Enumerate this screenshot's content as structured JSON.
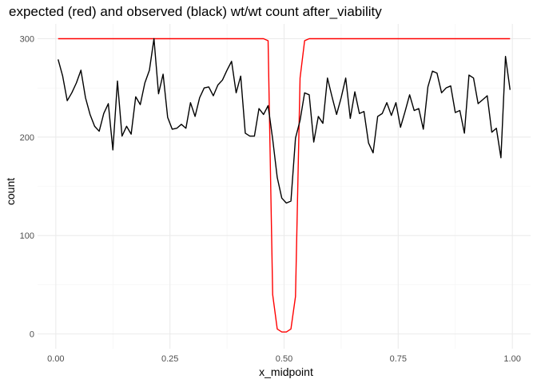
{
  "chart_data": {
    "type": "line",
    "title": "expected (red) and observed (black) wt/wt count after_viability",
    "xlabel": "x_midpoint",
    "ylabel": "count",
    "xlim": [
      -0.04,
      1.04
    ],
    "ylim": [
      -15,
      315
    ],
    "x_ticks": [
      0.0,
      0.25,
      0.5,
      0.75,
      1.0
    ],
    "x_tick_labels": [
      "0.00",
      "0.25",
      "0.50",
      "0.75",
      "1.00"
    ],
    "x_minor_ticks": [
      0.125,
      0.375,
      0.625,
      0.875
    ],
    "y_ticks": [
      0,
      100,
      200,
      300
    ],
    "y_tick_labels": [
      "0",
      "100",
      "200",
      "300"
    ],
    "y_minor_ticks": [
      50,
      150,
      250
    ],
    "grid": true,
    "legend": "none",
    "series": [
      {
        "color": "#ff0000",
        "x": [
          0.005,
          0.015,
          0.025,
          0.035,
          0.045,
          0.055,
          0.065,
          0.075,
          0.085,
          0.095,
          0.105,
          0.115,
          0.125,
          0.135,
          0.145,
          0.155,
          0.165,
          0.175,
          0.185,
          0.195,
          0.205,
          0.215,
          0.225,
          0.235,
          0.245,
          0.255,
          0.265,
          0.275,
          0.285,
          0.295,
          0.305,
          0.315,
          0.325,
          0.335,
          0.345,
          0.355,
          0.365,
          0.375,
          0.385,
          0.395,
          0.405,
          0.415,
          0.425,
          0.435,
          0.445,
          0.455,
          0.465,
          0.475,
          0.485,
          0.495,
          0.505,
          0.515,
          0.525,
          0.535,
          0.545,
          0.555,
          0.565,
          0.575,
          0.585,
          0.595,
          0.605,
          0.615,
          0.625,
          0.635,
          0.645,
          0.655,
          0.665,
          0.675,
          0.685,
          0.695,
          0.705,
          0.715,
          0.725,
          0.735,
          0.745,
          0.755,
          0.765,
          0.775,
          0.785,
          0.795,
          0.805,
          0.815,
          0.825,
          0.835,
          0.845,
          0.855,
          0.865,
          0.875,
          0.885,
          0.895,
          0.905,
          0.915,
          0.925,
          0.935,
          0.945,
          0.955,
          0.965,
          0.975,
          0.985,
          0.995
        ],
        "values": [
          300,
          300,
          300,
          300,
          300,
          300,
          300,
          300,
          300,
          300,
          300,
          300,
          300,
          300,
          300,
          300,
          300,
          300,
          300,
          300,
          300,
          300,
          300,
          300,
          300,
          300,
          300,
          300,
          300,
          300,
          300,
          300,
          300,
          300,
          300,
          300,
          300,
          300,
          300,
          300,
          300,
          300,
          300,
          300,
          300,
          300,
          298,
          40,
          5,
          2,
          2,
          5,
          38,
          260,
          298,
          300,
          300,
          300,
          300,
          300,
          300,
          300,
          300,
          300,
          300,
          300,
          300,
          300,
          300,
          300,
          300,
          300,
          300,
          300,
          300,
          300,
          300,
          300,
          300,
          300,
          300,
          300,
          300,
          300,
          300,
          300,
          300,
          300,
          300,
          300,
          300,
          300,
          300,
          300,
          300,
          300,
          300,
          300,
          300,
          300
        ]
      },
      {
        "color": "#000000",
        "x": [
          0.005,
          0.015,
          0.025,
          0.035,
          0.045,
          0.055,
          0.065,
          0.075,
          0.085,
          0.095,
          0.105,
          0.115,
          0.125,
          0.135,
          0.145,
          0.155,
          0.165,
          0.175,
          0.185,
          0.195,
          0.205,
          0.215,
          0.225,
          0.235,
          0.245,
          0.255,
          0.265,
          0.275,
          0.285,
          0.295,
          0.305,
          0.315,
          0.325,
          0.335,
          0.345,
          0.355,
          0.365,
          0.375,
          0.385,
          0.395,
          0.405,
          0.415,
          0.425,
          0.435,
          0.445,
          0.455,
          0.465,
          0.475,
          0.485,
          0.495,
          0.505,
          0.515,
          0.525,
          0.535,
          0.545,
          0.555,
          0.565,
          0.575,
          0.585,
          0.595,
          0.605,
          0.615,
          0.625,
          0.635,
          0.645,
          0.655,
          0.665,
          0.675,
          0.685,
          0.695,
          0.705,
          0.715,
          0.725,
          0.735,
          0.745,
          0.755,
          0.765,
          0.775,
          0.785,
          0.795,
          0.805,
          0.815,
          0.825,
          0.835,
          0.845,
          0.855,
          0.865,
          0.875,
          0.885,
          0.895,
          0.905,
          0.915,
          0.925,
          0.935,
          0.945,
          0.955,
          0.965,
          0.975,
          0.985,
          0.995
        ],
        "values": [
          279,
          262,
          237,
          245,
          255,
          268,
          240,
          223,
          211,
          206,
          224,
          234,
          187,
          257,
          201,
          211,
          203,
          241,
          233,
          255,
          268,
          300,
          244,
          264,
          220,
          208,
          209,
          213,
          209,
          235,
          221,
          240,
          250,
          251,
          242,
          253,
          258,
          268,
          277,
          245,
          262,
          204,
          201,
          201,
          229,
          223,
          232,
          198,
          159,
          138,
          133,
          135,
          199,
          217,
          245,
          243,
          195,
          221,
          214,
          260,
          241,
          223,
          240,
          260,
          219,
          246,
          224,
          226,
          194,
          184,
          221,
          224,
          235,
          222,
          235,
          210,
          226,
          243,
          227,
          229,
          208,
          251,
          267,
          265,
          245,
          250,
          252,
          225,
          227,
          204,
          263,
          260,
          234,
          238,
          242,
          205,
          209,
          179,
          282,
          248
        ]
      }
    ]
  }
}
